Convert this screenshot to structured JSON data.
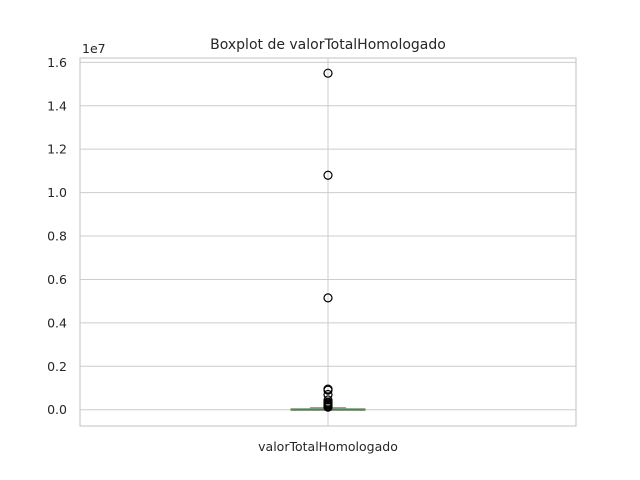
{
  "chart_data": {
    "type": "boxplot",
    "title": "Boxplot de valorTotalHomologado",
    "offset_label": "1e7",
    "categories": [
      "valorTotalHomologado"
    ],
    "ylim": [
      -0.075,
      1.62
    ],
    "yticks": [
      0.0,
      0.2,
      0.4,
      0.6,
      0.8,
      1.0,
      1.2,
      1.4,
      1.6
    ],
    "ytick_labels": [
      "0.0",
      "0.2",
      "0.4",
      "0.6",
      "0.8",
      "1.0",
      "1.2",
      "1.4",
      "1.6"
    ],
    "grid": true,
    "box": {
      "whisker_low": 0.0,
      "q1": 0.0005,
      "median": 0.0015,
      "q3": 0.004,
      "whisker_high": 0.009
    },
    "outliers": [
      1.55,
      1.08,
      0.515,
      0.095,
      0.09,
      0.07,
      0.045,
      0.035,
      0.03,
      0.025,
      0.02,
      0.015,
      0.012
    ],
    "colors": {
      "grid": "#cccccc",
      "outlier": "#000000",
      "box": "#7f7f7f",
      "median": "#4c8a4c",
      "text": "#262626"
    }
  }
}
